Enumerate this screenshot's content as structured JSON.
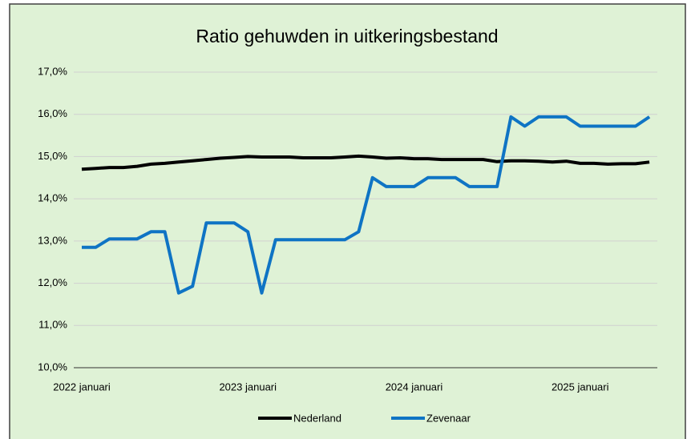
{
  "chart_data": {
    "type": "line",
    "title": "Ratio gehuwden in uitkeringsbestand",
    "categories": [
      "2022 januari",
      null,
      null,
      null,
      null,
      null,
      null,
      null,
      null,
      null,
      null,
      null,
      "2023 januari",
      null,
      null,
      null,
      null,
      null,
      null,
      null,
      null,
      null,
      null,
      null,
      "2024 januari",
      null,
      null,
      null,
      null,
      null,
      null,
      null,
      null,
      null,
      null,
      null,
      "2025 januari",
      null,
      null,
      null,
      null,
      null
    ],
    "series": [
      {
        "name": "Nederland",
        "color": "#000000",
        "values": [
          14.7,
          14.72,
          14.74,
          14.74,
          14.77,
          14.82,
          14.84,
          14.87,
          14.9,
          14.93,
          14.96,
          14.98,
          15.0,
          14.99,
          14.99,
          14.99,
          14.97,
          14.97,
          14.97,
          14.99,
          15.01,
          14.99,
          14.96,
          14.97,
          14.95,
          14.95,
          14.93,
          14.93,
          14.93,
          14.93,
          14.88,
          14.9,
          14.9,
          14.89,
          14.87,
          14.89,
          14.84,
          14.84,
          14.82,
          14.83,
          14.83,
          14.87
        ]
      },
      {
        "name": "Zevenaar",
        "color": "#0f74c4",
        "values": [
          12.85,
          12.85,
          13.05,
          13.05,
          13.05,
          13.22,
          13.22,
          11.77,
          11.93,
          13.43,
          13.43,
          13.43,
          13.22,
          11.77,
          13.03,
          13.03,
          13.03,
          13.03,
          13.03,
          13.03,
          13.22,
          14.5,
          14.29,
          14.29,
          14.29,
          14.5,
          14.5,
          14.5,
          14.29,
          14.29,
          14.29,
          15.94,
          15.72,
          15.94,
          15.94,
          15.94,
          15.72,
          15.72,
          15.72,
          15.72,
          15.72,
          15.94
        ]
      }
    ],
    "ylim": [
      10,
      17
    ],
    "yticks": [
      {
        "value": 10,
        "label": "10,0%"
      },
      {
        "value": 11,
        "label": "11,0%"
      },
      {
        "value": 12,
        "label": "12,0%"
      },
      {
        "value": 13,
        "label": "13,0%"
      },
      {
        "value": 14,
        "label": "14,0%"
      },
      {
        "value": 15,
        "label": "15,0%"
      },
      {
        "value": 16,
        "label": "16,0%"
      },
      {
        "value": 17,
        "label": "17,0%"
      }
    ],
    "grid": true,
    "legend": "bottom"
  }
}
